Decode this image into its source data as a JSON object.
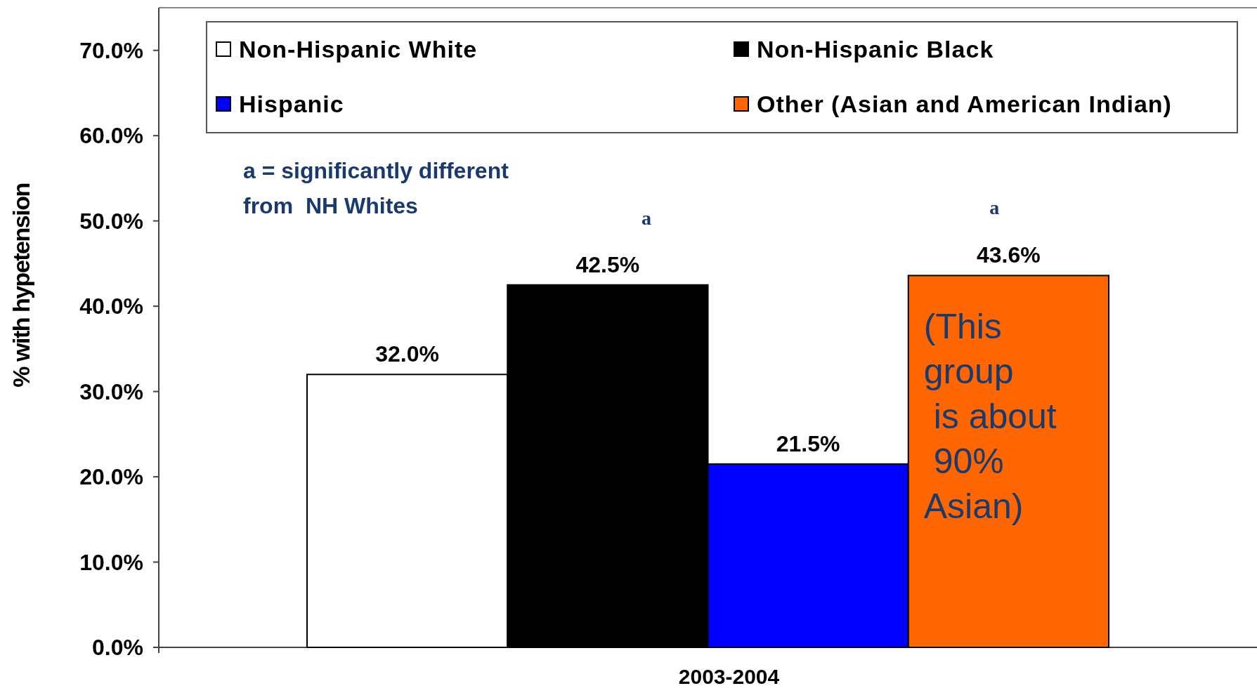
{
  "chart_data": {
    "type": "bar",
    "ylabel": "% with hypetension",
    "xlabel": "2003-2004",
    "categories": [
      null
    ],
    "series": [
      {
        "name": "Non-Hispanic White",
        "color": "#ffffff",
        "values": [
          32.0
        ],
        "value_labels": [
          "32.0%"
        ]
      },
      {
        "name": "Non-Hispanic Black",
        "color": "#000000",
        "values": [
          42.5
        ],
        "value_labels": [
          "42.5%"
        ]
      },
      {
        "name": "Hispanic",
        "color": "#0000ff",
        "values": [
          21.5
        ],
        "value_labels": [
          "21.5%"
        ]
      },
      {
        "name": "Other (Asian and American Indian)",
        "color": "#ff6600",
        "values": [
          43.6
        ],
        "value_labels": [
          "43.6%"
        ]
      }
    ],
    "ylim": [
      0,
      75
    ],
    "yticks": [
      {
        "value": 0,
        "label": "0.0%"
      },
      {
        "value": 10,
        "label": "10.0%"
      },
      {
        "value": 20,
        "label": "20.0%"
      },
      {
        "value": 30,
        "label": "30.0%"
      },
      {
        "value": 40,
        "label": "40.0%"
      },
      {
        "value": 50,
        "label": "50.0%"
      },
      {
        "value": 60,
        "label": "60.0%"
      },
      {
        "value": 70,
        "label": "70.0%"
      }
    ],
    "legend": "top",
    "grid": false,
    "annotations": [
      "a = significantly different\nfrom  NH Whites",
      "a",
      "a",
      "(This\ngroup\n is about\n 90%\nAsian)"
    ]
  }
}
